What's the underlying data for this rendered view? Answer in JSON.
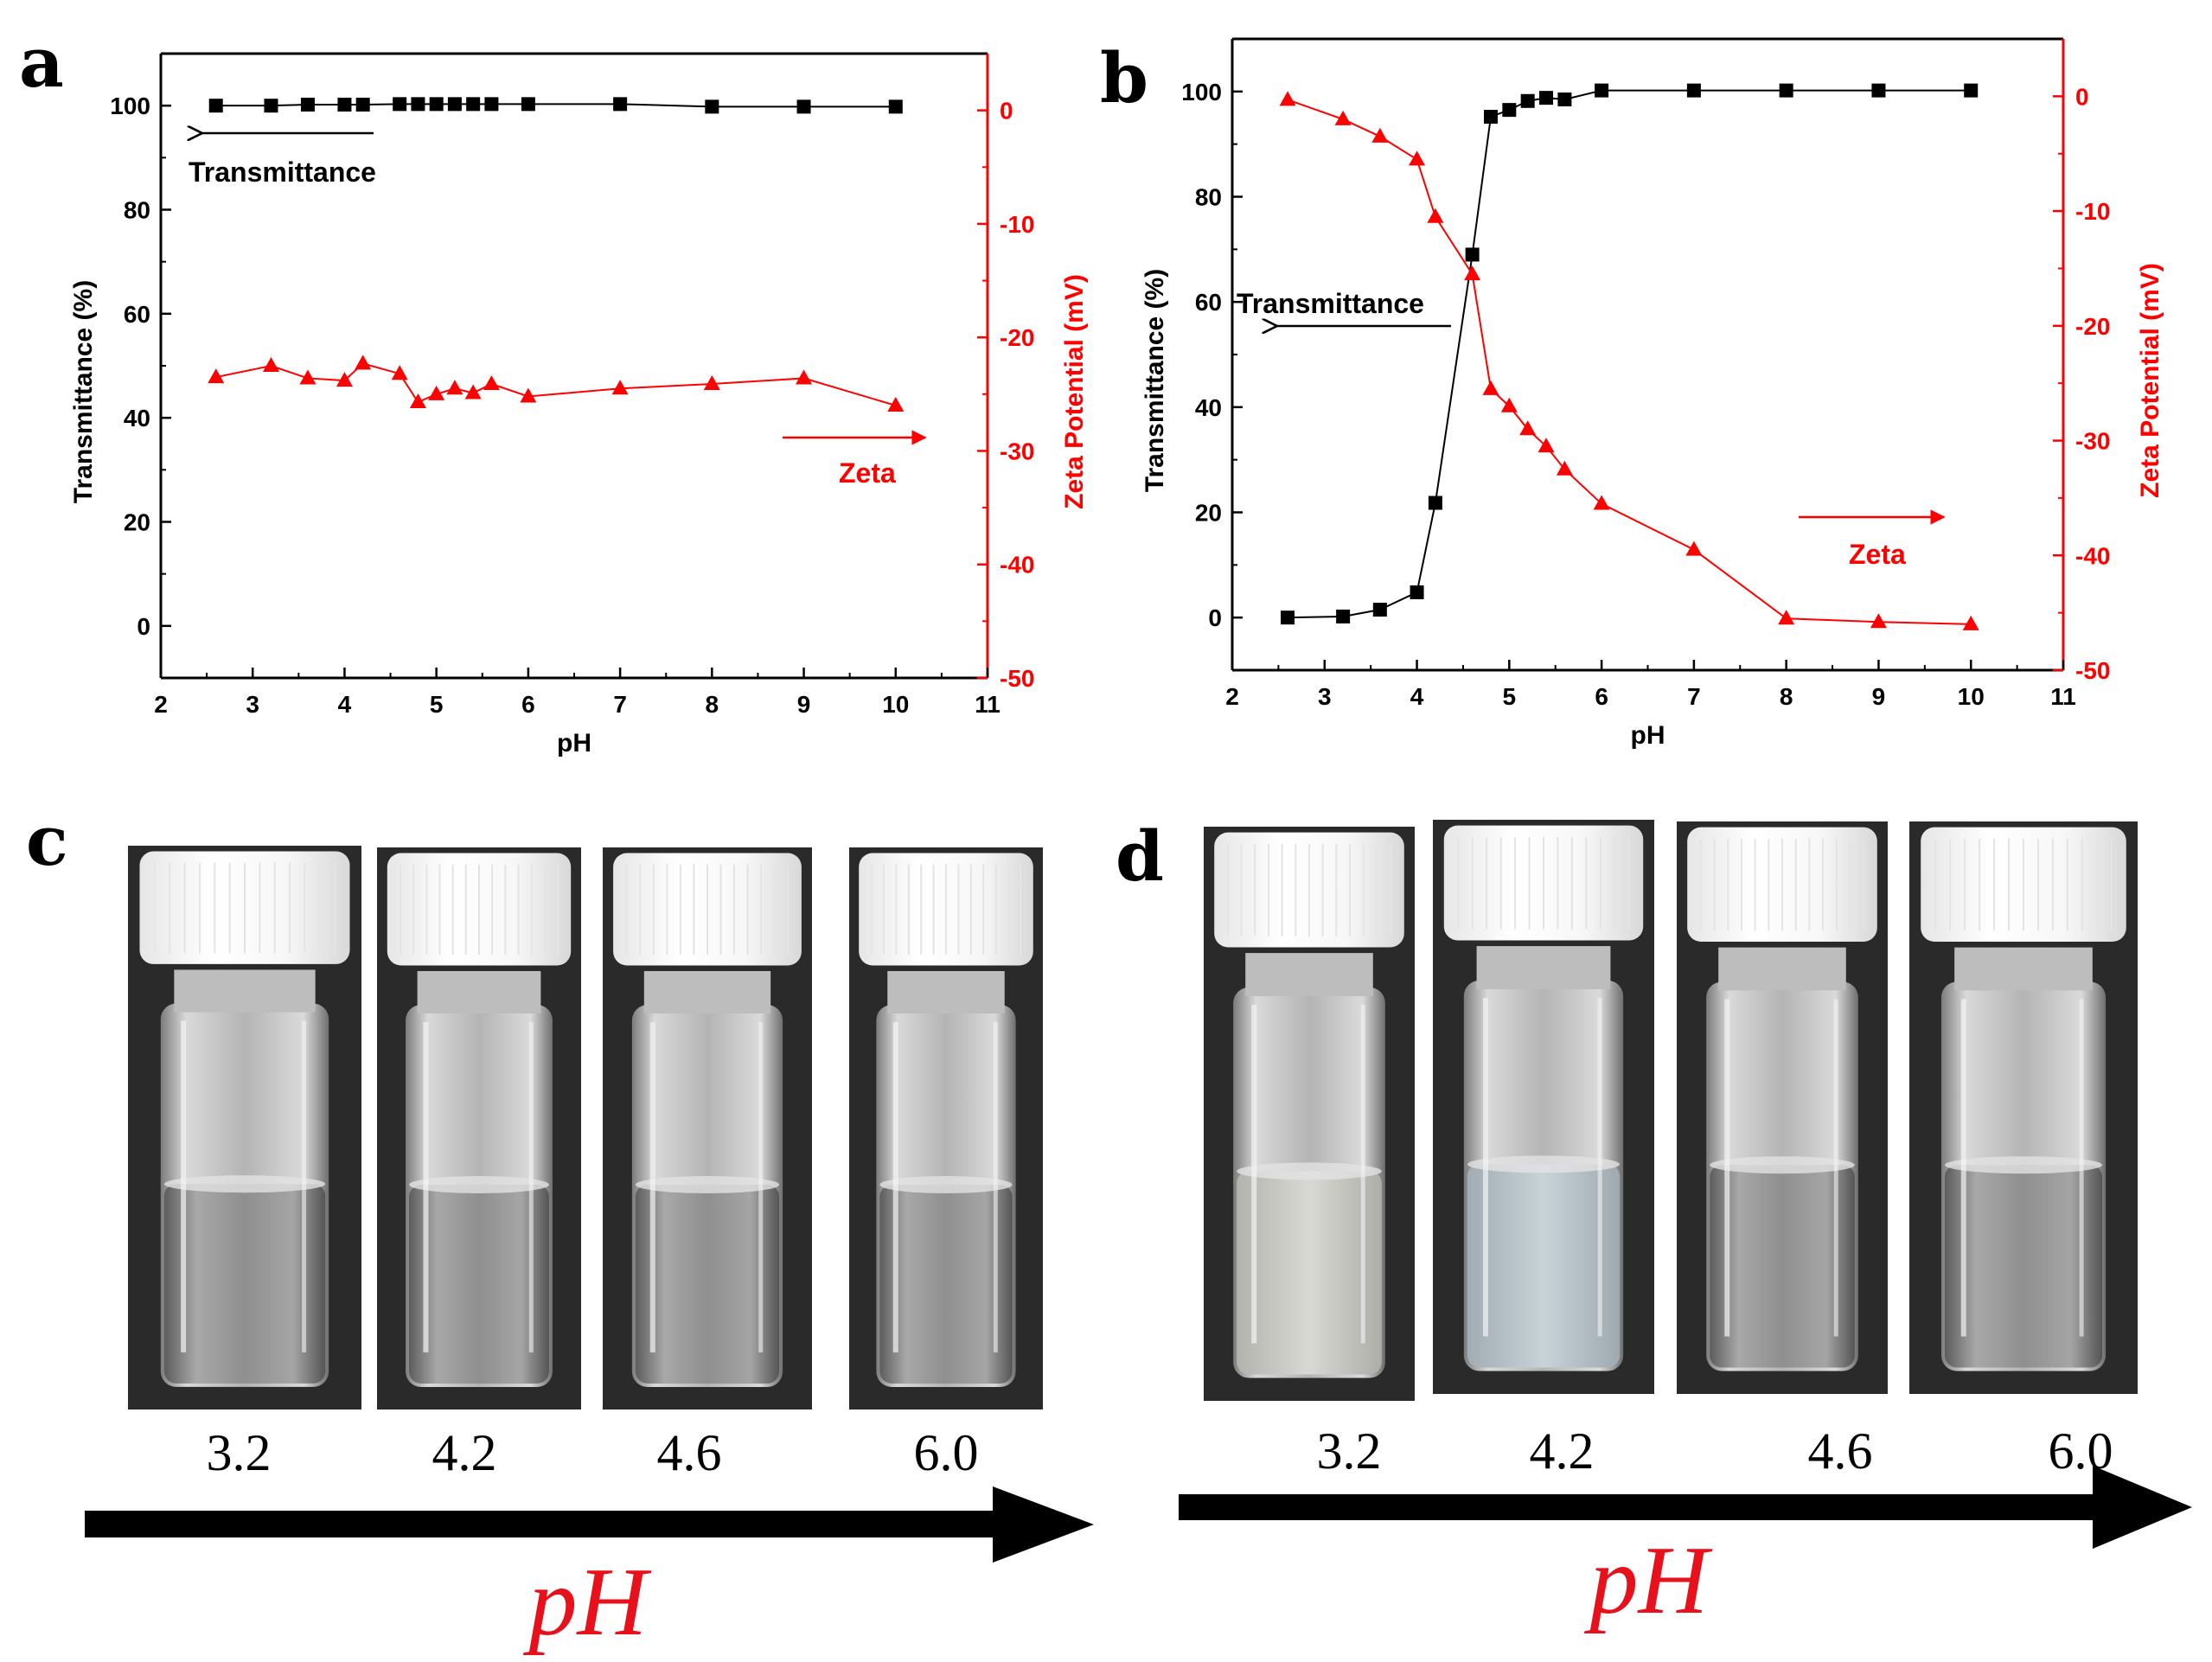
{
  "panels": {
    "a": {
      "letter": "a"
    },
    "b": {
      "letter": "b"
    },
    "c": {
      "letter": "c",
      "vial_labels": [
        "3.2",
        "4.2",
        "4.6",
        "6.0"
      ],
      "arrow_label": "pH"
    },
    "d": {
      "letter": "d",
      "vial_labels": [
        "3.2",
        "4.2",
        "4.6",
        "6.0"
      ],
      "arrow_label": "pH"
    }
  },
  "colors": {
    "transmittance": "#000000",
    "zeta": "#ff0000",
    "ph_label": "#e8101a"
  },
  "chart_data": [
    {
      "panel": "a",
      "type": "line",
      "xlabel": "pH",
      "ylabel": "Transmittance (%)",
      "y2label": "Zeta Potential (mV)",
      "xlim": [
        2,
        11
      ],
      "ylim": [
        -10,
        110
      ],
      "y2lim": [
        -50,
        5
      ],
      "xticks": [
        2,
        3,
        4,
        5,
        6,
        7,
        8,
        9,
        10,
        11
      ],
      "yticks": [
        0,
        20,
        40,
        60,
        80,
        100
      ],
      "y2ticks": [
        0,
        -10,
        -20,
        -30,
        -40,
        -50
      ],
      "series": [
        {
          "name": "Transmittance",
          "axis": "left",
          "marker": "square",
          "x": [
            2.6,
            3.2,
            3.6,
            4.0,
            4.2,
            4.6,
            4.8,
            5.0,
            5.2,
            5.4,
            5.6,
            6.0,
            7.0,
            8.0,
            9.0,
            10.0
          ],
          "values": [
            100,
            100,
            100.2,
            100.2,
            100.2,
            100.3,
            100.3,
            100.3,
            100.3,
            100.3,
            100.3,
            100.3,
            100.3,
            99.8,
            99.8,
            99.8
          ]
        },
        {
          "name": "Zeta",
          "axis": "right",
          "marker": "triangle",
          "x": [
            2.6,
            3.2,
            3.6,
            4.0,
            4.2,
            4.6,
            4.8,
            5.0,
            5.2,
            5.4,
            5.6,
            6.0,
            7.0,
            8.0,
            9.0,
            10.0
          ],
          "values": [
            -23.5,
            -22.5,
            -23.6,
            -23.8,
            -22.3,
            -23.2,
            -25.7,
            -25.0,
            -24.5,
            -24.9,
            -24.1,
            -25.2,
            -24.5,
            -24.1,
            -23.6,
            -26.0
          ]
        }
      ],
      "annotations": [
        {
          "text": "Transmittance",
          "points_to": "left"
        },
        {
          "text": "Zeta",
          "points_to": "right"
        }
      ]
    },
    {
      "panel": "b",
      "type": "line",
      "xlabel": "pH",
      "ylabel": "Transmittance (%)",
      "y2label": "Zeta Potential (mV)",
      "xlim": [
        2,
        11
      ],
      "ylim": [
        -10,
        110
      ],
      "y2lim": [
        -50,
        5
      ],
      "xticks": [
        2,
        3,
        4,
        5,
        6,
        7,
        8,
        9,
        10,
        11
      ],
      "yticks": [
        0,
        20,
        40,
        60,
        80,
        100
      ],
      "y2ticks": [
        0,
        -10,
        -20,
        -30,
        -40,
        -50
      ],
      "series": [
        {
          "name": "Transmittance",
          "axis": "left",
          "marker": "square",
          "x": [
            2.6,
            3.2,
            3.6,
            4.0,
            4.2,
            4.6,
            4.8,
            5.0,
            5.2,
            5.4,
            5.6,
            6.0,
            7.0,
            8.0,
            9.0,
            10.0
          ],
          "values": [
            0,
            0.2,
            1.5,
            4.8,
            21.8,
            69,
            95.2,
            96.5,
            98.2,
            98.8,
            98.5,
            100.2,
            100.2,
            100.2,
            100.2,
            100.2
          ]
        },
        {
          "name": "Zeta",
          "axis": "right",
          "marker": "triangle",
          "x": [
            2.6,
            3.2,
            3.6,
            4.0,
            4.2,
            4.6,
            4.8,
            5.0,
            5.2,
            5.4,
            5.6,
            6.0,
            7.0,
            8.0,
            9.0,
            10.0
          ],
          "values": [
            -0.3,
            -2.0,
            -3.5,
            -5.5,
            -10.5,
            -15.5,
            -25.5,
            -27.0,
            -29.0,
            -30.5,
            -32.5,
            -35.5,
            -39.5,
            -45.5,
            -45.8,
            -46.0
          ]
        }
      ],
      "annotations": [
        {
          "text": "Transmittance",
          "points_to": "left"
        },
        {
          "text": "Zeta",
          "points_to": "right"
        }
      ]
    }
  ]
}
